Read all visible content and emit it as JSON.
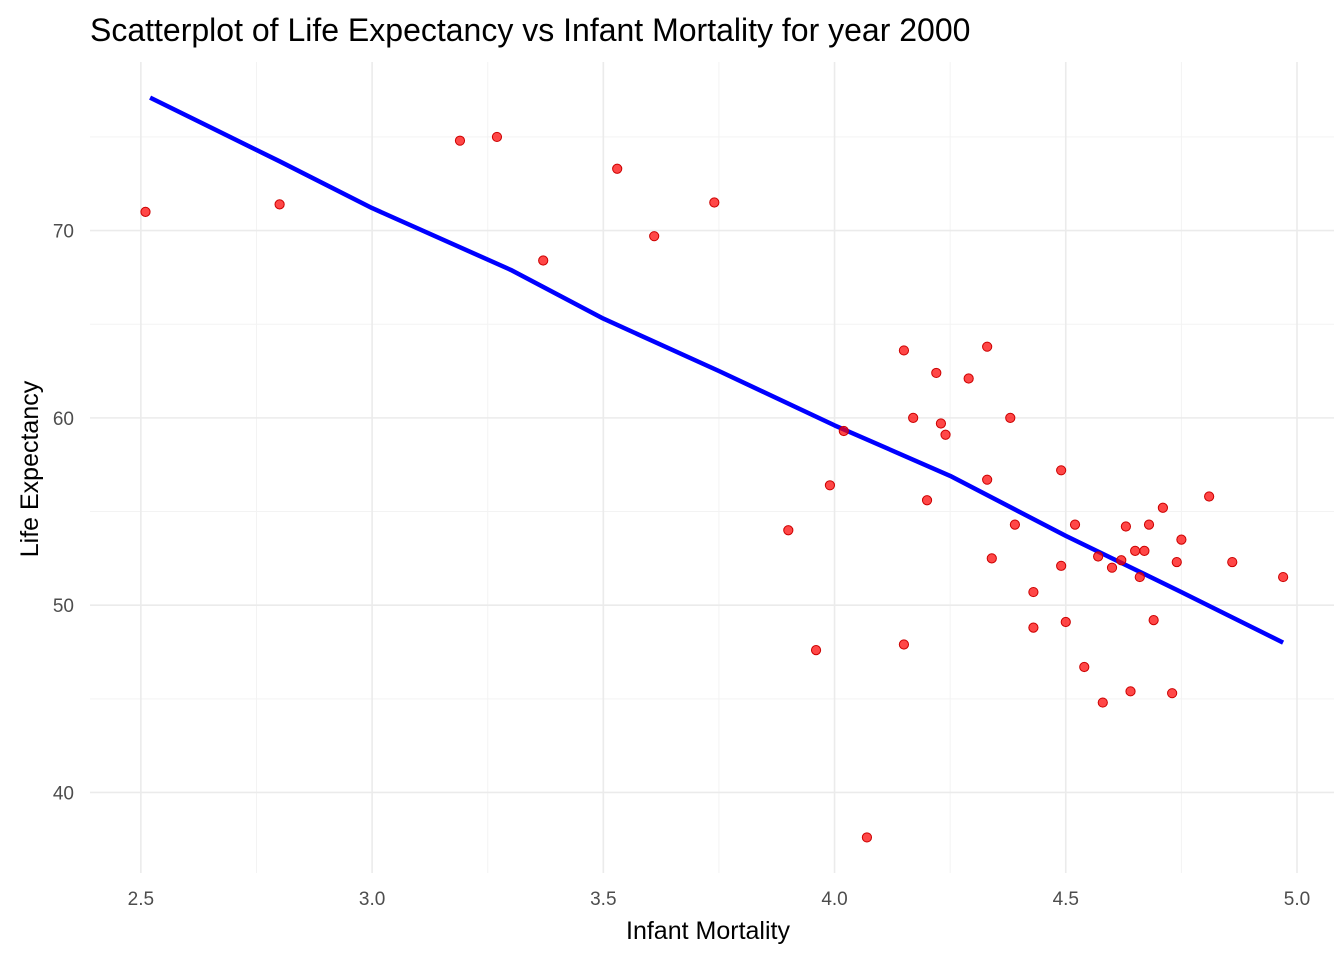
{
  "chart_data": {
    "type": "scatter",
    "title": "Scatterplot of Life Expectancy vs Infant Mortality for year 2000",
    "xlabel": "Infant Mortality",
    "ylabel": "Life Expectancy",
    "xlim": [
      2.39,
      5.08
    ],
    "ylim": [
      35.7,
      79.0
    ],
    "x_ticks": [
      2.5,
      3.0,
      3.5,
      4.0,
      4.5,
      5.0
    ],
    "x_tick_labels": [
      "2.5",
      "3.0",
      "3.5",
      "4.0",
      "4.5",
      "5.0"
    ],
    "y_ticks": [
      40,
      50,
      60,
      70
    ],
    "y_tick_labels": [
      "40",
      "50",
      "60",
      "70"
    ],
    "grid": true,
    "legend": "none",
    "point_color": "#ff0000",
    "line_color": "#0000ff",
    "series": [
      {
        "type": "scatter",
        "points": [
          {
            "x": 2.51,
            "y": 71.0
          },
          {
            "x": 2.8,
            "y": 71.4
          },
          {
            "x": 3.19,
            "y": 74.8
          },
          {
            "x": 3.27,
            "y": 75.0
          },
          {
            "x": 3.37,
            "y": 68.4
          },
          {
            "x": 3.53,
            "y": 73.3
          },
          {
            "x": 3.61,
            "y": 69.7
          },
          {
            "x": 3.74,
            "y": 71.5
          },
          {
            "x": 3.9,
            "y": 54.0
          },
          {
            "x": 3.96,
            "y": 47.6
          },
          {
            "x": 3.99,
            "y": 56.4
          },
          {
            "x": 4.02,
            "y": 59.3
          },
          {
            "x": 4.07,
            "y": 37.6
          },
          {
            "x": 4.15,
            "y": 63.6
          },
          {
            "x": 4.15,
            "y": 47.9
          },
          {
            "x": 4.17,
            "y": 60.0
          },
          {
            "x": 4.2,
            "y": 55.6
          },
          {
            "x": 4.22,
            "y": 62.4
          },
          {
            "x": 4.23,
            "y": 59.7
          },
          {
            "x": 4.24,
            "y": 59.1
          },
          {
            "x": 4.29,
            "y": 62.1
          },
          {
            "x": 4.33,
            "y": 63.8
          },
          {
            "x": 4.33,
            "y": 56.7
          },
          {
            "x": 4.34,
            "y": 52.5
          },
          {
            "x": 4.38,
            "y": 60.0
          },
          {
            "x": 4.39,
            "y": 54.3
          },
          {
            "x": 4.43,
            "y": 50.7
          },
          {
            "x": 4.43,
            "y": 48.8
          },
          {
            "x": 4.49,
            "y": 57.2
          },
          {
            "x": 4.49,
            "y": 52.1
          },
          {
            "x": 4.5,
            "y": 49.1
          },
          {
            "x": 4.52,
            "y": 54.3
          },
          {
            "x": 4.54,
            "y": 46.7
          },
          {
            "x": 4.57,
            "y": 52.6
          },
          {
            "x": 4.58,
            "y": 44.8
          },
          {
            "x": 4.6,
            "y": 52.0
          },
          {
            "x": 4.62,
            "y": 52.4
          },
          {
            "x": 4.63,
            "y": 54.2
          },
          {
            "x": 4.64,
            "y": 45.4
          },
          {
            "x": 4.65,
            "y": 52.9
          },
          {
            "x": 4.66,
            "y": 51.5
          },
          {
            "x": 4.67,
            "y": 52.9
          },
          {
            "x": 4.68,
            "y": 54.3
          },
          {
            "x": 4.69,
            "y": 49.2
          },
          {
            "x": 4.71,
            "y": 55.2
          },
          {
            "x": 4.73,
            "y": 45.3
          },
          {
            "x": 4.74,
            "y": 52.3
          },
          {
            "x": 4.75,
            "y": 53.5
          },
          {
            "x": 4.81,
            "y": 55.8
          },
          {
            "x": 4.86,
            "y": 52.3
          },
          {
            "x": 4.97,
            "y": 51.5
          }
        ]
      },
      {
        "type": "line",
        "points": [
          {
            "x": 2.52,
            "y": 77.1
          },
          {
            "x": 2.8,
            "y": 73.7
          },
          {
            "x": 3.0,
            "y": 71.2
          },
          {
            "x": 3.3,
            "y": 67.9
          },
          {
            "x": 3.5,
            "y": 65.3
          },
          {
            "x": 3.75,
            "y": 62.5
          },
          {
            "x": 4.0,
            "y": 59.6
          },
          {
            "x": 4.25,
            "y": 56.9
          },
          {
            "x": 4.5,
            "y": 53.7
          },
          {
            "x": 4.75,
            "y": 50.7
          },
          {
            "x": 4.97,
            "y": 48.0
          }
        ]
      }
    ]
  }
}
